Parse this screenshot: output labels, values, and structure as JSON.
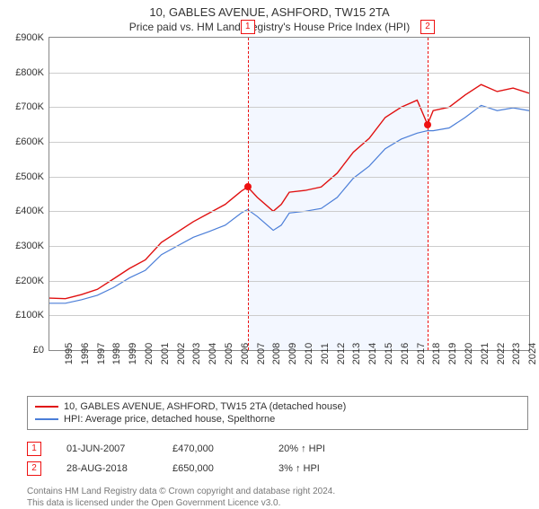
{
  "title": "10, GABLES AVENUE, ASHFORD, TW15 2TA",
  "subtitle": "Price paid vs. HM Land Registry's House Price Index (HPI)",
  "chart": {
    "type": "line",
    "background_color": "#ffffff",
    "grid_color": "#cccccc",
    "axis_color": "#888888",
    "y": {
      "min": 0,
      "max": 900,
      "step": 100,
      "prefix": "£",
      "suffix": "K"
    },
    "x": {
      "min": 1995,
      "max": 2025,
      "step": 1
    },
    "shade_bands": [
      {
        "from": 2007.4,
        "to": 2018.65,
        "color": "rgba(100,150,255,0.08)"
      }
    ],
    "series": [
      {
        "name": "10, GABLES AVENUE, ASHFORD, TW15 2TA (detached house)",
        "color": "#e01010",
        "width": 1.4,
        "points": [
          [
            1995,
            150
          ],
          [
            1996,
            148
          ],
          [
            1997,
            160
          ],
          [
            1998,
            175
          ],
          [
            1999,
            205
          ],
          [
            2000,
            235
          ],
          [
            2001,
            260
          ],
          [
            2002,
            310
          ],
          [
            2003,
            340
          ],
          [
            2004,
            370
          ],
          [
            2005,
            395
          ],
          [
            2006,
            420
          ],
          [
            2007,
            458
          ],
          [
            2007.4,
            470
          ],
          [
            2008,
            440
          ],
          [
            2009,
            400
          ],
          [
            2009.5,
            420
          ],
          [
            2010,
            455
          ],
          [
            2011,
            460
          ],
          [
            2012,
            470
          ],
          [
            2013,
            510
          ],
          [
            2014,
            570
          ],
          [
            2015,
            610
          ],
          [
            2016,
            670
          ],
          [
            2017,
            700
          ],
          [
            2018,
            720
          ],
          [
            2018.65,
            650
          ],
          [
            2019,
            690
          ],
          [
            2020,
            700
          ],
          [
            2021,
            735
          ],
          [
            2022,
            765
          ],
          [
            2023,
            745
          ],
          [
            2024,
            755
          ],
          [
            2025,
            740
          ]
        ]
      },
      {
        "name": "HPI: Average price, detached house, Spelthorne",
        "color": "#4b7ed8",
        "width": 1.2,
        "points": [
          [
            1995,
            135
          ],
          [
            1996,
            135
          ],
          [
            1997,
            145
          ],
          [
            1998,
            158
          ],
          [
            1999,
            180
          ],
          [
            2000,
            208
          ],
          [
            2001,
            230
          ],
          [
            2002,
            275
          ],
          [
            2003,
            300
          ],
          [
            2004,
            325
          ],
          [
            2005,
            342
          ],
          [
            2006,
            360
          ],
          [
            2007,
            395
          ],
          [
            2007.4,
            405
          ],
          [
            2008,
            385
          ],
          [
            2009,
            345
          ],
          [
            2009.5,
            360
          ],
          [
            2010,
            395
          ],
          [
            2011,
            400
          ],
          [
            2012,
            408
          ],
          [
            2013,
            440
          ],
          [
            2014,
            495
          ],
          [
            2015,
            530
          ],
          [
            2016,
            580
          ],
          [
            2017,
            608
          ],
          [
            2018,
            625
          ],
          [
            2018.65,
            632
          ],
          [
            2019,
            632
          ],
          [
            2020,
            640
          ],
          [
            2021,
            670
          ],
          [
            2022,
            705
          ],
          [
            2023,
            690
          ],
          [
            2024,
            698
          ],
          [
            2025,
            690
          ]
        ]
      }
    ],
    "sale_markers": [
      {
        "n": "1",
        "x": 2007.4,
        "y": 470
      },
      {
        "n": "2",
        "x": 2018.65,
        "y": 650
      }
    ]
  },
  "legend": [
    {
      "color": "#e01010",
      "label": "10, GABLES AVENUE, ASHFORD, TW15 2TA (detached house)"
    },
    {
      "color": "#4b7ed8",
      "label": "HPI: Average price, detached house, Spelthorne"
    }
  ],
  "sales": [
    {
      "n": "1",
      "date": "01-JUN-2007",
      "price": "£470,000",
      "diff": "20% ↑ HPI"
    },
    {
      "n": "2",
      "date": "28-AUG-2018",
      "price": "£650,000",
      "diff": "3% ↑ HPI"
    }
  ],
  "footer1": "Contains HM Land Registry data © Crown copyright and database right 2024.",
  "footer2": "This data is licensed under the Open Government Licence v3.0."
}
